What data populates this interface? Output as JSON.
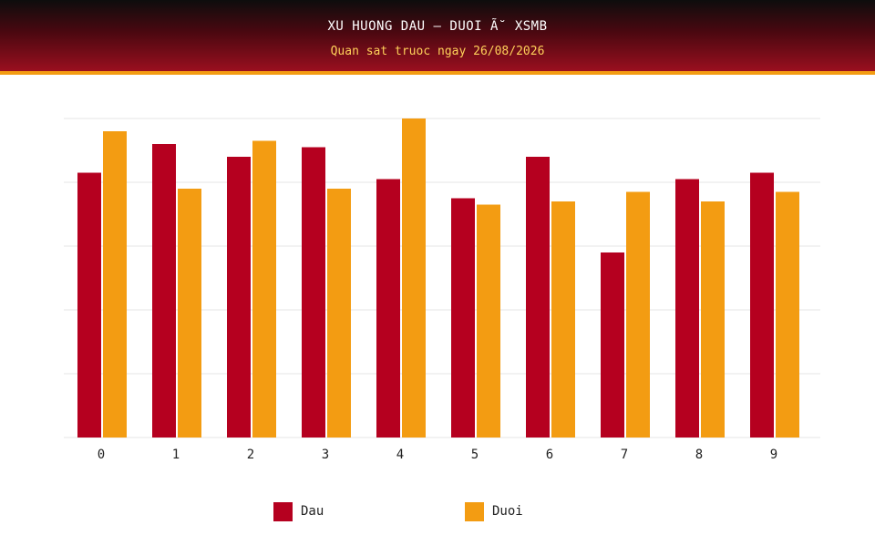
{
  "header": {
    "title": "XU HUONG DAU – DUOI Ã˘ XSMB",
    "subtitle": "Quan sat truoc ngay 26/08/2026"
  },
  "colors": {
    "dau": "#b5001f",
    "duoi": "#f39c12",
    "grid": "#e6e6e6",
    "header_accent": "#f39c12"
  },
  "chart_data": {
    "type": "bar",
    "title": "XU HUONG DAU – DUOI Ã˘ XSMB",
    "subtitle": "Quan sat truoc ngay 26/08/2026",
    "categories": [
      "0",
      "1",
      "2",
      "3",
      "4",
      "5",
      "6",
      "7",
      "8",
      "9"
    ],
    "series": [
      {
        "name": "Dau",
        "color": "#b5001f",
        "values": [
          83,
          92,
          88,
          91,
          81,
          75,
          88,
          58,
          81,
          83
        ]
      },
      {
        "name": "Duoi",
        "color": "#f39c12",
        "values": [
          96,
          78,
          93,
          78,
          100,
          73,
          74,
          77,
          74,
          77
        ]
      }
    ],
    "ylim": [
      0,
      100
    ],
    "y_ticks_shown": false,
    "grid": true,
    "legend_position": "bottom-center"
  }
}
